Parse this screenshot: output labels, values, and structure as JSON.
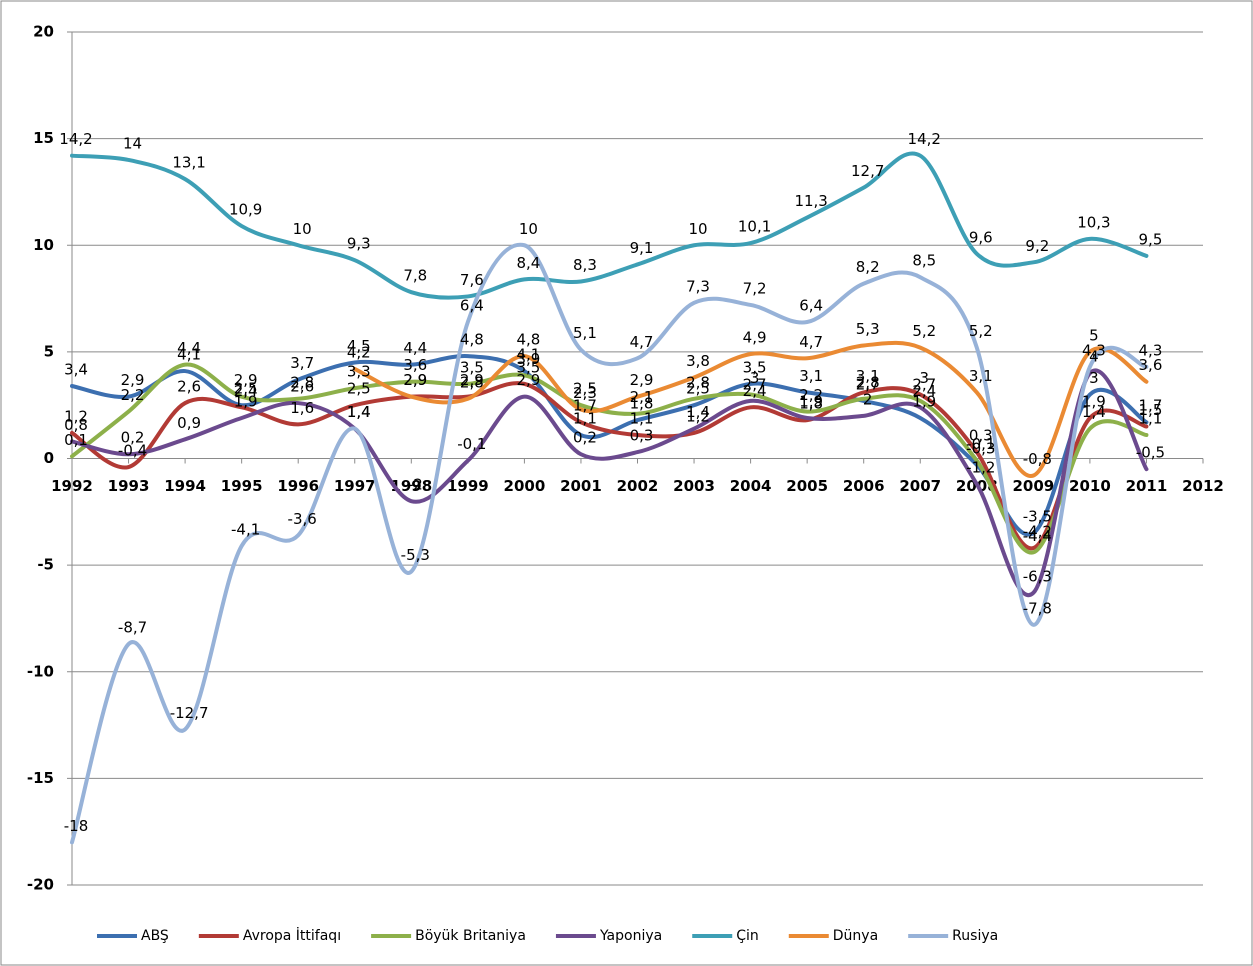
{
  "chart_data": {
    "type": "line",
    "x": [
      1992,
      1993,
      1994,
      1995,
      1996,
      1997,
      1998,
      1999,
      2000,
      2001,
      2002,
      2003,
      2004,
      2005,
      2006,
      2007,
      2008,
      2009,
      2010,
      2011
    ],
    "xlim": [
      1992,
      2012
    ],
    "xticks": [
      1992,
      1993,
      1994,
      1995,
      1996,
      1997,
      1998,
      1999,
      2000,
      2001,
      2002,
      2003,
      2004,
      2005,
      2006,
      2007,
      2008,
      2009,
      2010,
      2011,
      2012
    ],
    "ylim": [
      -20,
      20
    ],
    "yticks": [
      -20,
      -15,
      -10,
      -5,
      0,
      5,
      10,
      15,
      20
    ],
    "grid": true,
    "legend": "bottom",
    "series": [
      {
        "name": "ABŞ",
        "color": "#3c6fb0",
        "values": [
          3.4,
          2.9,
          4.1,
          2.5,
          3.7,
          4.5,
          4.4,
          4.8,
          4.1,
          1.1,
          1.8,
          2.5,
          3.5,
          3.1,
          2.7,
          1.9,
          -0.3,
          -3.5,
          3,
          1.7
        ],
        "value_labels": [
          "3,4",
          "2,9",
          "4,1",
          "2,5",
          "3,7",
          "4,5",
          "4,4",
          "4,8",
          "4,1",
          "1,1",
          "1,8",
          "2,5",
          "3,5",
          "3,1",
          "2,7",
          "1,9",
          "-0,3",
          "-3,5",
          "3",
          "1,7"
        ]
      },
      {
        "name": "Avropa İttifaqı",
        "color": "#b23a35",
        "values": [
          1.2,
          -0.4,
          2.6,
          2.4,
          1.6,
          2.5,
          2.9,
          2.9,
          3.5,
          1.7,
          1.1,
          1.2,
          2.4,
          1.8,
          3.1,
          3,
          0.3,
          -4.2,
          1.9,
          1.5
        ],
        "value_labels": [
          "1,2",
          "-0,4",
          "2,6",
          "2,4",
          "1,6",
          "2,5",
          "2,9",
          "2,9",
          "3,5",
          "1,7",
          "1,1",
          "1,2",
          "2,4",
          "1,8",
          "3,1",
          "3",
          "0,3",
          "-4,2",
          "1,9",
          "1,5"
        ]
      },
      {
        "name": "Böyük Britaniya",
        "color": "#8db04a",
        "values": [
          0.1,
          2.2,
          4.4,
          2.9,
          2.8,
          3.3,
          3.6,
          3.5,
          3.9,
          2.5,
          2.1,
          2.8,
          3,
          2.2,
          2.8,
          2.7,
          -0.1,
          -4.4,
          1.4,
          1.1
        ],
        "value_labels": [
          "0,1",
          "2,2",
          "4,4",
          "2,9",
          "2,8",
          "3,3",
          "3,6",
          "3,5",
          "3,9",
          "2,5",
          "2,1",
          "2,8",
          "3",
          "2,2",
          "2,8",
          "2,7",
          "-0,1",
          "-4,4",
          "1,4",
          "1,1"
        ]
      },
      {
        "name": "Yaponiya",
        "color": "#6b4a8e",
        "values": [
          0.8,
          0.2,
          0.9,
          1.9,
          2.6,
          1.4,
          -2,
          -0.1,
          2.9,
          0.2,
          0.3,
          1.4,
          2.7,
          1.9,
          2,
          2.4,
          -1.2,
          -6.3,
          4,
          -0.5
        ],
        "value_labels": [
          "0,8",
          "0,2",
          "0,9",
          "1,9",
          "2,6",
          "1,4",
          "-2",
          "-0,1",
          "2,9",
          "0,2",
          "0,3",
          "1,4",
          "2,7",
          "1,9",
          "2",
          "2,4",
          "-1,2",
          "-6,3",
          "4",
          "-0,5"
        ]
      },
      {
        "name": "Çin",
        "color": "#3d9fb5",
        "values": [
          14.2,
          14,
          13.1,
          10.9,
          10,
          9.3,
          7.8,
          7.6,
          8.4,
          8.3,
          9.1,
          10,
          10.1,
          11.3,
          12.7,
          14.2,
          9.6,
          9.2,
          10.3,
          9.5
        ],
        "value_labels": [
          "14,2",
          "14",
          "13,1",
          "10,9",
          "10",
          "9,3",
          "7,8",
          "7,6",
          "8,4",
          "8,3",
          "9,1",
          "10",
          "10,1",
          "11,3",
          "12,7",
          "14,2",
          "9,6",
          "9,2",
          "10,3",
          "9,5"
        ]
      },
      {
        "name": "Dünya",
        "color": "#ea8a33",
        "values": [
          null,
          null,
          null,
          null,
          null,
          4.2,
          2.9,
          2.8,
          4.8,
          2.3,
          2.9,
          3.8,
          4.9,
          4.7,
          5.3,
          5.2,
          3.1,
          -0.8,
          5,
          3.6
        ],
        "value_labels": [
          null,
          null,
          null,
          null,
          null,
          "4,2",
          "2,9",
          "2,8",
          "4,8",
          "2,3",
          "2,9",
          "3,8",
          "4,9",
          "4,7",
          "5,3",
          "5,2",
          "3,1",
          "-0,8",
          "5",
          "3,6"
        ]
      },
      {
        "name": "Rusiya",
        "color": "#97b2d8",
        "values": [
          -18,
          -8.7,
          -12.7,
          -4.1,
          -3.6,
          1.4,
          -5.3,
          6.4,
          10,
          5.1,
          4.7,
          7.3,
          7.2,
          6.4,
          8.2,
          8.5,
          5.2,
          -7.8,
          4.3,
          4.3
        ],
        "value_labels": [
          "-18",
          "-8,7",
          "-12,7",
          "-4,1",
          "-3,6",
          "1,4",
          "-5,3",
          "6,4",
          "10",
          "5,1",
          "4,7",
          "7,3",
          "7,2",
          "6,4",
          "8,2",
          "8,5",
          "5,2",
          "-7,8",
          "4,3",
          "4,3"
        ]
      }
    ]
  }
}
